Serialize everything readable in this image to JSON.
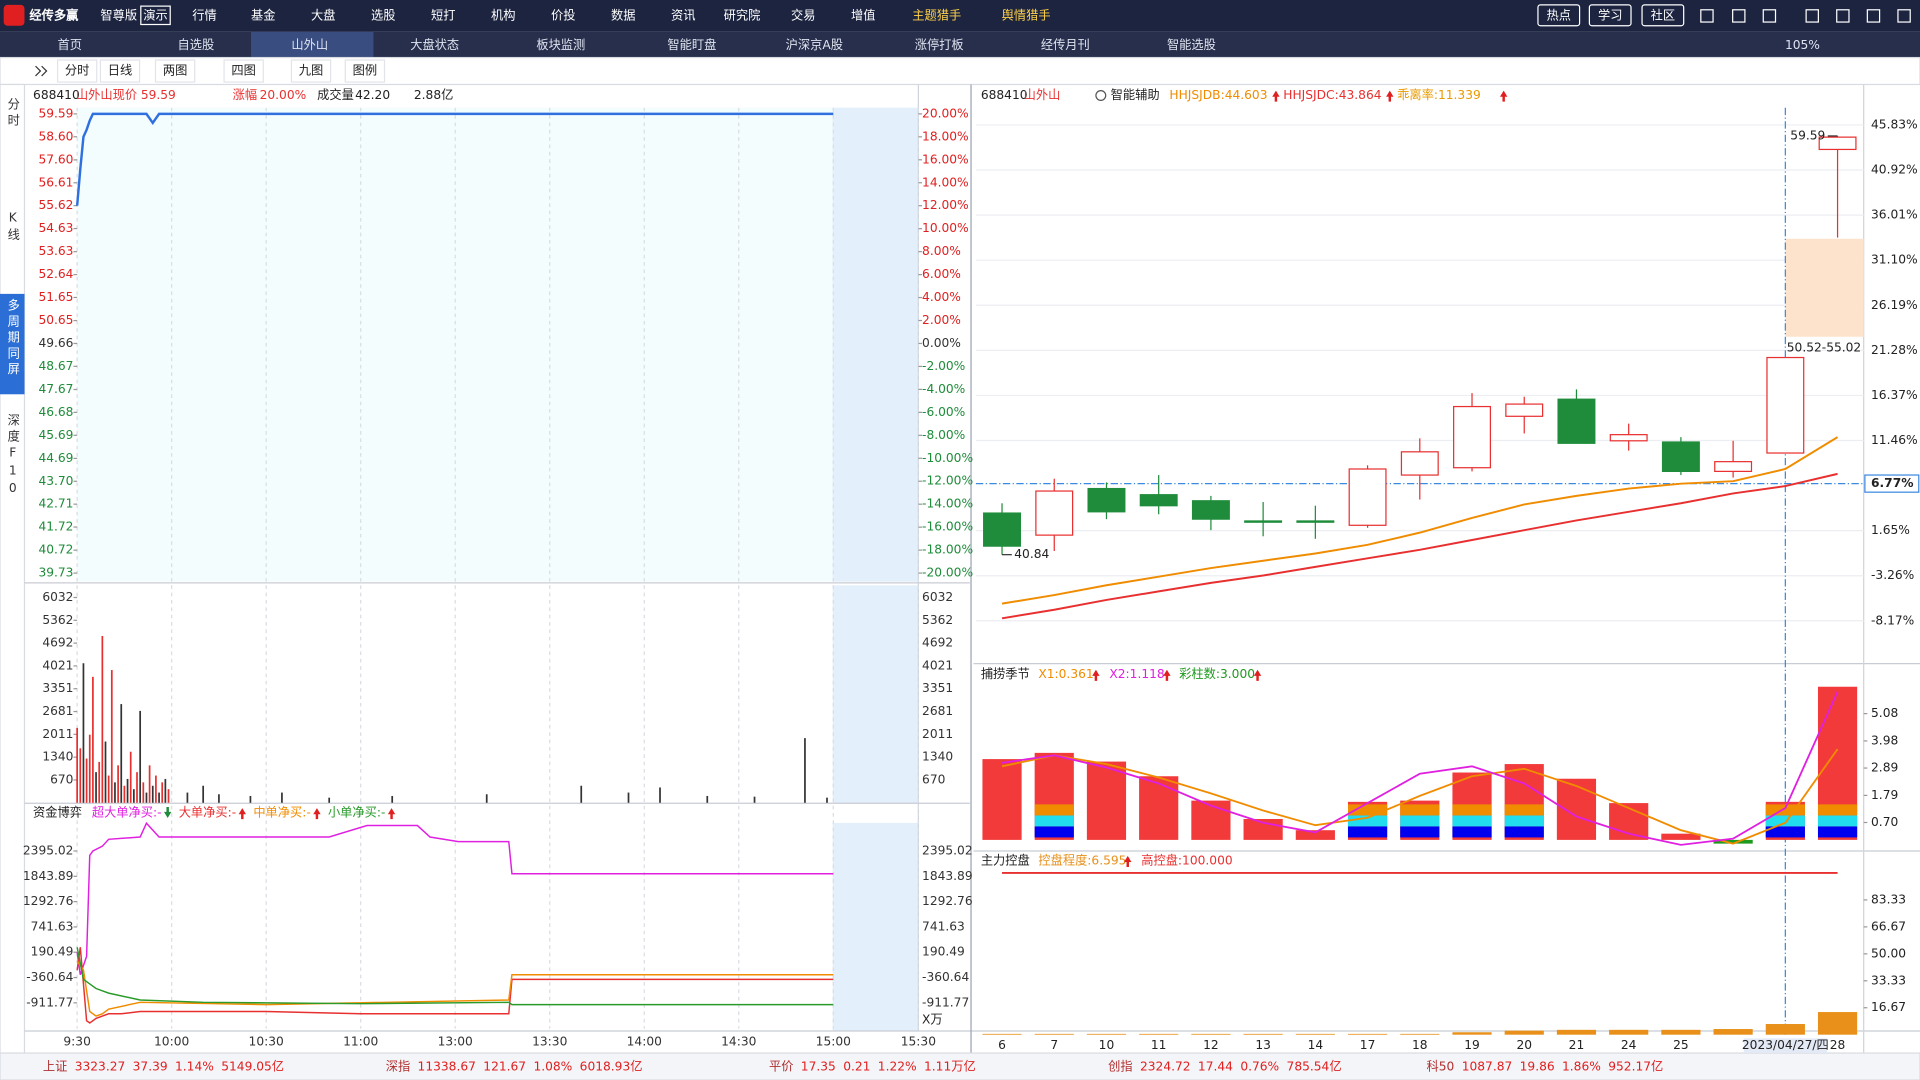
{
  "menu": {
    "logo": "经传多赢",
    "edition": "智尊版",
    "demo": "演示",
    "items": [
      "行情",
      "基金",
      "大盘",
      "选股",
      "短打",
      "机构",
      "价投",
      "数据",
      "资讯",
      "研究院",
      "交易",
      "增值",
      "主题猎手",
      "舆情猎手"
    ],
    "buttons": [
      "热点",
      "学习",
      "社区"
    ]
  },
  "tabs": {
    "items": [
      "首页",
      "自选股",
      "山外山",
      "大盘状态",
      "板块监测",
      "智能盯盘",
      "沪深京A股",
      "涨停打板",
      "经传月刊",
      "智能选股"
    ],
    "zoom": "105%"
  },
  "toolbar": [
    "分时",
    "日线",
    "两图",
    "四图",
    "九图",
    "图例"
  ],
  "sidebar": [
    "分时",
    "K线",
    "多周期同屏",
    "深度F10"
  ],
  "quote": {
    "code": "688410",
    "name": "山外山",
    "price_label": "现价",
    "price": "59.59",
    "change_label": "涨幅",
    "change": "20.00%",
    "volume_label": "成交量",
    "volume": "42.20",
    "amount": "2.88亿"
  },
  "kline_header": {
    "code": "688410",
    "name": "山外山",
    "assist": "智能辅助"
  },
  "status": [
    {
      "name": "上证",
      "price": "3323.27",
      "change": "37.39",
      "pct": "1.14%",
      "amount": "5149.05亿"
    },
    {
      "name": "深指",
      "price": "11338.67",
      "change": "121.67",
      "pct": "1.08%",
      "amount": "6018.93亿"
    },
    {
      "name": "平价",
      "price": "17.35",
      "change": "0.21",
      "pct": "1.22%",
      "amount": "1.11万亿"
    },
    {
      "name": "创指",
      "price": "2324.72",
      "change": "17.44",
      "pct": "0.76%",
      "amount": "785.54亿"
    },
    {
      "name": "科50",
      "price": "1087.87",
      "change": "19.86",
      "pct": "1.86%",
      "amount": "952.17亿"
    }
  ],
  "chart_data": [
    {
      "type": "line",
      "color": "#2f6fdf",
      "grid": true,
      "x": [
        0,
        1,
        2,
        3,
        4,
        5,
        8,
        12,
        20,
        22,
        24,
        26,
        35,
        60,
        120,
        240
      ],
      "values": [
        55.62,
        57.2,
        58.6,
        58.9,
        59.3,
        59.59,
        59.59,
        59.59,
        59.59,
        59.59,
        59.2,
        59.59,
        59.59,
        59.59,
        59.59,
        59.59
      ],
      "xlim": [
        0,
        267
      ],
      "xticks": [
        {
          "value": 0,
          "label": "9:30"
        },
        {
          "value": 30,
          "label": "10:00"
        },
        {
          "value": 60,
          "label": "10:30"
        },
        {
          "value": 90,
          "label": "11:00"
        },
        {
          "value": 120,
          "label": "13:00"
        },
        {
          "value": 150,
          "label": "13:30"
        },
        {
          "value": 180,
          "label": "14:00"
        },
        {
          "value": 210,
          "label": "14:30"
        },
        {
          "value": 240,
          "label": "15:00"
        },
        {
          "value": 267,
          "label": "15:30"
        }
      ],
      "ylim": [
        39.73,
        59.59
      ],
      "yticks": [
        59.59,
        {
          "value": 58.6,
          "label": "58.60"
        },
        {
          "value": 57.6,
          "label": "57.60"
        },
        56.61,
        55.62,
        54.63,
        53.63,
        52.64,
        51.65,
        50.65,
        49.66,
        48.67,
        47.67,
        46.68,
        45.69,
        44.69,
        {
          "value": 43.7,
          "label": "43.70"
        },
        42.71,
        41.72,
        40.72,
        39.73
      ],
      "y2lim": [
        -20,
        20
      ],
      "y2ticks": [
        {
          "value": 20,
          "label": "20.00%"
        },
        {
          "value": 18,
          "label": "18.00%"
        },
        {
          "value": 16,
          "label": "16.00%"
        },
        {
          "value": 14,
          "label": "14.00%"
        },
        {
          "value": 12,
          "label": "12.00%"
        },
        {
          "value": 10,
          "label": "10.00%"
        },
        {
          "value": 8,
          "label": "8.00%"
        },
        {
          "value": 6,
          "label": "6.00%"
        },
        {
          "value": 4,
          "label": "4.00%"
        },
        {
          "value": 2,
          "label": "2.00%"
        },
        {
          "value": 0,
          "label": "0.00%"
        },
        {
          "value": -2,
          "label": "-2.00%"
        },
        {
          "value": -4,
          "label": "-4.00%"
        },
        {
          "value": -6,
          "label": "-6.00%"
        },
        {
          "value": -8,
          "label": "-8.00%"
        },
        {
          "value": -10,
          "label": "-10.00%"
        },
        {
          "value": -12,
          "label": "-12.00%"
        },
        {
          "value": -14,
          "label": "-14.00%"
        },
        {
          "value": -16,
          "label": "-16.00%"
        },
        {
          "value": -18,
          "label": "-18.00%"
        },
        {
          "value": -20,
          "label": "-20.00%"
        }
      ]
    },
    {
      "type": "bar",
      "x": [
        0,
        1,
        2,
        3,
        4,
        5,
        6,
        7,
        8,
        9,
        10,
        11,
        12,
        13,
        14,
        15,
        16,
        17,
        18,
        19,
        20,
        21,
        22,
        23,
        24,
        25,
        26,
        27,
        28,
        29,
        35,
        40,
        45,
        55,
        65,
        80,
        100,
        130,
        160,
        175,
        185,
        200,
        215,
        231,
        238
      ],
      "values": [
        2200,
        1600,
        4100,
        1300,
        2000,
        3700,
        900,
        1200,
        4900,
        1800,
        800,
        3900,
        600,
        1100,
        2900,
        500,
        700,
        1500,
        400,
        900,
        2700,
        600,
        300,
        1100,
        500,
        800,
        300,
        600,
        700,
        400,
        300,
        500,
        250,
        200,
        300,
        150,
        200,
        250,
        500,
        300,
        450,
        200,
        180,
        1900,
        150
      ],
      "colors": [
        "#e83030",
        "#e83030",
        "#333333",
        "#e83030",
        "#e83030",
        "#e83030",
        "#333333",
        "#e83030",
        "#e83030",
        "#333333",
        "#e83030",
        "#e83030",
        "#333333",
        "#e83030",
        "#333333",
        "#e83030",
        "#333333",
        "#e83030",
        "#333333",
        "#e83030",
        "#333333",
        "#e83030",
        "#333333",
        "#e83030",
        "#333333",
        "#e83030",
        "#333333",
        "#e83030",
        "#333333",
        "#e83030",
        "#333333",
        "#333333",
        "#333333",
        "#333333",
        "#333333",
        "#333333",
        "#333333",
        "#333333",
        "#333333",
        "#333333",
        "#333333",
        "#333333",
        "#333333",
        "#333333",
        "#333333"
      ],
      "ylim": [
        0,
        6390
      ],
      "yticks": [
        6032,
        5362,
        4692,
        4021,
        3351,
        2681,
        2011,
        1340,
        670
      ]
    },
    {
      "type": "line",
      "title": "资金博弈",
      "unit": "X万",
      "series": [
        {
          "name": "超大单净买:-",
          "color": "#e020e0",
          "x": [
            0,
            1,
            2,
            3,
            4,
            5,
            8,
            10,
            20,
            22,
            24,
            26,
            80,
            92,
            108,
            112,
            121,
            137,
            138,
            240
          ],
          "values": [
            190,
            -300,
            -100,
            100,
            2300,
            2395,
            2500,
            2650,
            2700,
            3000,
            2850,
            2700,
            2700,
            2950,
            2950,
            2700,
            2600,
            2600,
            1900,
            1900
          ]
        },
        {
          "name": "大单净买:-",
          "color": "#e83030",
          "x": [
            0,
            1,
            2,
            3,
            4,
            6,
            8,
            10,
            14,
            20,
            40,
            60,
            90,
            137,
            138,
            240
          ],
          "values": [
            -200,
            300,
            -500,
            -1300,
            -1350,
            -1250,
            -1200,
            -1150,
            -1150,
            -1100,
            -1100,
            -1100,
            -1150,
            -1150,
            -400,
            -400
          ]
        },
        {
          "name": "中单净买:-",
          "color": "#f08c00",
          "x": [
            0,
            2,
            4,
            6,
            8,
            10,
            20,
            60,
            137,
            138,
            240
          ],
          "values": [
            0,
            -200,
            -1100,
            -1200,
            -1150,
            -1050,
            -900,
            -950,
            -850,
            -300,
            -300
          ]
        },
        {
          "name": "小单净买:-",
          "color": "#2a9a2a",
          "x": [
            0,
            2,
            4,
            6,
            10,
            20,
            40,
            90,
            137,
            138,
            240
          ],
          "values": [
            300,
            -400,
            -500,
            -600,
            -700,
            -850,
            -900,
            -930,
            -900,
            -950,
            -950
          ]
        }
      ],
      "ylim": [
        -1472,
        3008
      ],
      "yticks": [
        2395.02,
        1843.89,
        1292.76,
        741.63,
        190.49,
        -360.64,
        -911.77
      ]
    },
    {
      "type": "candlestick",
      "grid": true,
      "legend": [
        {
          "text": "HHJSJDB:44.603",
          "color": "#f08c00"
        },
        {
          "text": "HHJSJDC:43.864",
          "color": "#e83030"
        },
        {
          "text": "乖离率:11.339",
          "color": "#e89a00"
        }
      ],
      "categories": [
        "6",
        "7",
        "10",
        "11",
        "12",
        "13",
        "14",
        "17",
        "18",
        "19",
        "20",
        "21",
        "24",
        "25",
        null,
        "2023/04/27/四",
        "28"
      ],
      "open": [
        3.56,
        1.16,
        6.23,
        5.56,
        4.9,
        2.7,
        2.7,
        2.23,
        7.7,
        8.5,
        14.1,
        15.96,
        11.43,
        11.3,
        8.1,
        10.1,
        43.16
      ],
      "high": [
        4.63,
        7.3,
        6.9,
        7.7,
        5.43,
        4.76,
        4.36,
        8.76,
        11.7,
        16.63,
        16.23,
        17.03,
        13.3,
        11.83,
        11.43,
        20.5,
        44.63
      ],
      "low": [
        -0.97,
        -0.57,
        2.9,
        3.43,
        1.7,
        1.03,
        0.76,
        1.96,
        5.03,
        8.1,
        12.23,
        11.16,
        10.36,
        7.7,
        7.43,
        10.1,
        33.56
      ],
      "close": [
        -0.04,
        5.96,
        3.7,
        4.36,
        2.9,
        2.63,
        2.63,
        8.36,
        10.23,
        15.16,
        15.43,
        11.16,
        12.1,
        8.1,
        9.16,
        20.5,
        44.5
      ],
      "up_color": "#e83030",
      "down_color": "#1e8c3a",
      "ma": [
        {
          "color": "#f08c00",
          "values": [
            -6.3,
            -5.37,
            -4.3,
            -3.37,
            -2.43,
            -1.63,
            -0.84,
            0.1,
            1.43,
            3.03,
            4.5,
            5.43,
            6.23,
            6.76,
            7.03,
            8.36,
            11.83
          ]
        },
        {
          "color": "#e83030",
          "values": [
            -7.9,
            -6.97,
            -5.9,
            -4.97,
            -4.04,
            -3.24,
            -2.3,
            -1.37,
            -0.44,
            0.63,
            1.7,
            2.76,
            3.7,
            4.63,
            5.7,
            6.5,
            7.83
          ]
        }
      ],
      "high_label": "59.59",
      "low_label": "40.84",
      "zone": {
        "from": 22.76,
        "to": 33.43,
        "label": "50.52-55.02"
      },
      "crosshair": {
        "value": 6.77,
        "label": "6.77%"
      },
      "ylim": [
        -9.24,
        47.7
      ],
      "yticks": [
        {
          "value": 45.83,
          "label": "45.83%"
        },
        {
          "value": 40.92,
          "label": "40.92%"
        },
        {
          "value": 36.01,
          "label": "36.01%"
        },
        {
          "value": 31.1,
          "label": "31.10%"
        },
        {
          "value": 26.19,
          "label": "26.19%"
        },
        {
          "value": 21.28,
          "label": "21.28%"
        },
        {
          "value": 16.37,
          "label": "16.37%"
        },
        {
          "value": 11.46,
          "label": "11.46%"
        },
        {
          "value": 1.65,
          "label": "1.65%"
        },
        {
          "value": -3.26,
          "label": "-3.26%"
        },
        {
          "value": -8.17,
          "label": "-8.17%"
        }
      ]
    },
    {
      "type": "bar",
      "title": "捕捞季节",
      "values": [
        3.25,
        3.5,
        3.15,
        2.56,
        1.58,
        0.84,
        0.39,
        1.53,
        1.58,
        2.71,
        3.05,
        2.46,
        1.48,
        0.25,
        -0.15,
        1.53,
        6.16
      ],
      "colored": [
        false,
        true,
        false,
        false,
        false,
        false,
        false,
        true,
        true,
        true,
        true,
        false,
        false,
        false,
        false,
        true,
        true
      ],
      "series": [
        {
          "name": "X1:0.361",
          "color": "#f08c00",
          "values": [
            2.96,
            3.4,
            3.05,
            2.51,
            1.87,
            1.18,
            0.59,
            0.89,
            1.77,
            2.56,
            2.86,
            2.17,
            1.28,
            0.39,
            -0.15,
            0.69,
            3.65
          ]
        },
        {
          "name": "X2:1.118",
          "color": "#e020e0",
          "values": [
            3.1,
            3.4,
            2.91,
            2.27,
            1.38,
            0.69,
            0.3,
            1.48,
            2.66,
            2.96,
            2.27,
            0.94,
            0.25,
            -0.2,
            0.05,
            1.28,
            5.96
          ]
        }
      ],
      "extra_legend": {
        "text": "彩柱数:3.000",
        "color": "#1e9a1e"
      },
      "ylim": [
        -0.3,
        6.3
      ],
      "yticks": [
        5.08,
        3.98,
        2.89,
        1.79,
        {
          "value": 0.7,
          "label": "0.70"
        }
      ]
    },
    {
      "type": "bar",
      "title": "主力控盘",
      "series": [
        {
          "name": "控盘程度:6.595",
          "color": "#e8901a",
          "values": [
            0.5,
            0.5,
            0.5,
            0.5,
            0.5,
            0.5,
            0.5,
            0.5,
            0.5,
            1.5,
            2.5,
            3,
            3,
            3,
            3.5,
            6.6,
            14
          ]
        }
      ],
      "high_line": {
        "name": "高控盘:100.000",
        "color": "#e83030",
        "value": 100
      },
      "ylim": [
        0,
        106
      ],
      "yticks": [
        83.33,
        66.67,
        {
          "value": 50,
          "label": "50.00"
        },
        33.33,
        16.67
      ]
    }
  ]
}
